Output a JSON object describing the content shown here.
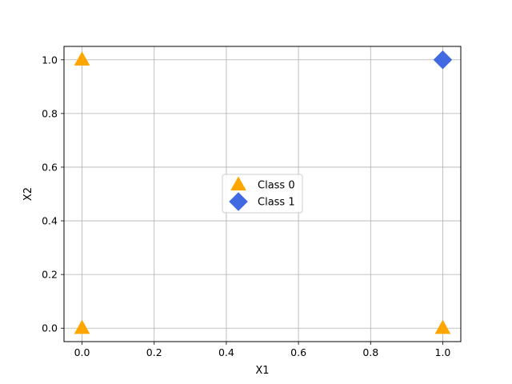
{
  "chart_data": {
    "type": "scatter",
    "title": "",
    "xlabel": "X1",
    "ylabel": "X2",
    "xlim": [
      -0.05,
      1.05
    ],
    "ylim": [
      -0.05,
      1.05
    ],
    "grid": true,
    "legend_position": "center",
    "x_ticks": [
      0.0,
      0.2,
      0.4,
      0.6,
      0.8,
      1.0
    ],
    "x_tick_labels": [
      "0.0",
      "0.2",
      "0.4",
      "0.6",
      "0.8",
      "1.0"
    ],
    "y_ticks": [
      0.0,
      0.2,
      0.4,
      0.6,
      0.8,
      1.0
    ],
    "y_tick_labels": [
      "0.0",
      "0.2",
      "0.4",
      "0.6",
      "0.8",
      "1.0"
    ],
    "series": [
      {
        "name": "Class 0",
        "marker": "triangle",
        "color": "#FFA500",
        "points": [
          {
            "x": 0,
            "y": 0
          },
          {
            "x": 0,
            "y": 1
          },
          {
            "x": 1,
            "y": 0
          }
        ]
      },
      {
        "name": "Class 1",
        "marker": "diamond",
        "color": "#4169E1",
        "points": [
          {
            "x": 1,
            "y": 1
          }
        ]
      }
    ]
  },
  "colors": {
    "grid": "#b0b0b0",
    "axes": "#000000",
    "legend_border": "#cccccc"
  }
}
